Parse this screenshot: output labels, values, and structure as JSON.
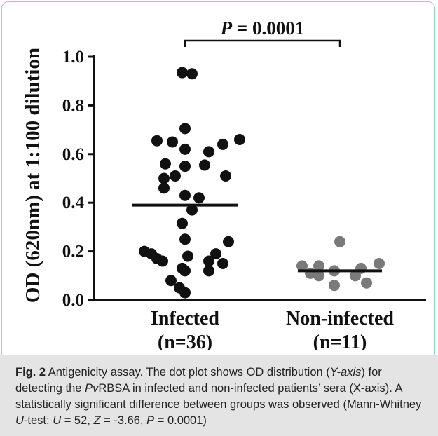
{
  "chart_data": {
    "type": "scatter",
    "ylabel": "OD (620nm) at 1:100 dilution",
    "ylim": [
      0.0,
      1.0
    ],
    "yticks": [
      "0.0",
      "0.2",
      "0.4",
      "0.6",
      "0.8",
      "1.0"
    ],
    "categories": [
      "Infected\n(n=36)",
      "Non-infected\n(n=11)"
    ],
    "category_lines": [
      [
        "Infected",
        "(n=36)"
      ],
      [
        "Non-infected",
        "(n=11)"
      ]
    ],
    "annotation": {
      "p_symbol": "P",
      "p_text": " = 0.0001"
    },
    "colors": {
      "infected": "#111111",
      "non_infected": "#7a7a7a",
      "axis": "#111111"
    },
    "series": [
      {
        "category": "Infected (n=36)",
        "median": 0.39,
        "values": [
          0.935,
          0.93,
          0.705,
          0.655,
          0.65,
          0.66,
          0.64,
          0.62,
          0.61,
          0.56,
          0.55,
          0.555,
          0.51,
          0.51,
          0.5,
          0.46,
          0.42,
          0.43,
          0.37,
          0.315,
          0.25,
          0.24,
          0.2,
          0.19,
          0.18,
          0.17,
          0.19,
          0.16,
          0.16,
          0.15,
          0.12,
          0.13,
          0.12,
          0.08,
          0.05,
          0.03
        ]
      },
      {
        "category": "Non-infected (n=11)",
        "median": 0.12,
        "values": [
          0.24,
          0.14,
          0.15,
          0.14,
          0.13,
          0.12,
          0.11,
          0.1,
          0.1,
          0.07,
          0.06
        ]
      }
    ]
  },
  "caption": {
    "label": "Fig. 2",
    "title": " Antigenicity assay.",
    "t1": " The dot plot shows OD distribution (",
    "t1_em": "Y-axis",
    "t2": ") for detecting the ",
    "t2_em": "Pv",
    "t3": "RBSA in infected and non-infected patients’ sera (X-axis). A statistically significant difference between groups was observed (Mann-Whitney ",
    "t3_em": "U",
    "t4": "-test: ",
    "t4_em": "U",
    "t5": " = 52, ",
    "t5_em": "Z",
    "t6": " = -3.66, ",
    "t6_em": "P",
    "t7": " = 0.0001)"
  }
}
